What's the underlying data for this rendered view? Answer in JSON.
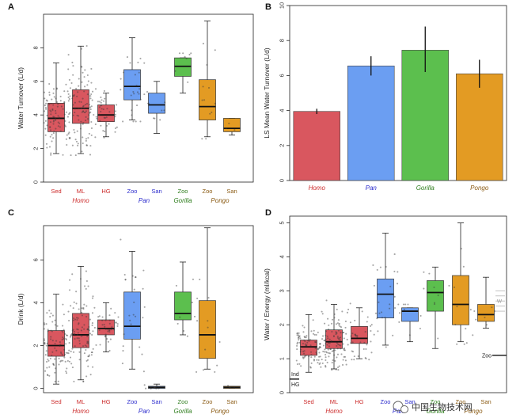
{
  "colors": {
    "Homo": "#d9575f",
    "Pan": "#6b9ef2",
    "Gorilla": "#5cbf4e",
    "Pongo": "#e39b23",
    "Homo_text": "#cc2b2b",
    "Pan_text": "#2b2bcc",
    "Gorilla_text": "#2e7d1d",
    "Pongo_text": "#8a5a12"
  },
  "watermark": {
    "text": "中国生物技术网",
    "icon": "wechat-icon"
  },
  "chart_data": [
    {
      "panel": "A",
      "type": "box",
      "title": "",
      "ylabel": "Water Turnover (L/d)",
      "ylim": [
        0,
        10
      ],
      "yticks": [
        0,
        2,
        4,
        6,
        8
      ],
      "categories": [
        {
          "label": "Sed",
          "genus": "Homo",
          "q1": 3.0,
          "median": 3.8,
          "q3": 4.7,
          "wlo": 1.7,
          "whi": 7.1,
          "n": 90
        },
        {
          "label": "ML",
          "genus": "Homo",
          "q1": 3.5,
          "median": 4.4,
          "q3": 5.5,
          "wlo": 1.7,
          "whi": 8.1,
          "n": 110
        },
        {
          "label": "HG",
          "genus": "Homo",
          "q1": 3.6,
          "median": 4.0,
          "q3": 4.6,
          "wlo": 2.7,
          "whi": 5.3,
          "n": 40
        },
        {
          "label": "Zoo",
          "genus": "Pan",
          "q1": 4.9,
          "median": 5.7,
          "q3": 6.7,
          "wlo": 3.7,
          "whi": 8.6,
          "n": 25
        },
        {
          "label": "San",
          "genus": "Pan",
          "q1": 4.1,
          "median": 4.6,
          "q3": 5.3,
          "wlo": 2.9,
          "whi": 6.0,
          "n": 10
        },
        {
          "label": "Zoo",
          "genus": "Gorilla",
          "q1": 6.3,
          "median": 6.9,
          "q3": 7.4,
          "wlo": 5.3,
          "whi": 7.4,
          "n": 8
        },
        {
          "label": "Zoo",
          "genus": "Pongo",
          "q1": 3.7,
          "median": 4.5,
          "q3": 6.1,
          "wlo": 2.7,
          "whi": 9.6,
          "n": 12
        },
        {
          "label": "San",
          "genus": "Pongo",
          "q1": 3.0,
          "median": 3.2,
          "q3": 3.8,
          "wlo": 2.8,
          "whi": 3.8,
          "n": 3
        }
      ],
      "genus_labels": [
        "Homo",
        "Pan",
        "Gorilla",
        "Pongo"
      ]
    },
    {
      "panel": "B",
      "type": "bar",
      "ylabel": "LS Mean Water Turnover (L/d)",
      "ylim": [
        0,
        10
      ],
      "yticks": [
        0,
        2,
        4,
        6,
        8,
        10
      ],
      "categories": [
        "Homo",
        "Pan",
        "Gorilla",
        "Pongo"
      ],
      "values": [
        3.95,
        6.55,
        7.45,
        6.1
      ],
      "err_low": [
        3.8,
        6.0,
        6.2,
        5.3
      ],
      "err_high": [
        4.1,
        7.1,
        8.8,
        6.9
      ]
    },
    {
      "panel": "C",
      "type": "box",
      "ylabel": "Drink (L/d)",
      "ylim": [
        -0.2,
        7.6
      ],
      "yticks": [
        0,
        2,
        4,
        6
      ],
      "categories": [
        {
          "label": "Sed",
          "genus": "Homo",
          "q1": 1.5,
          "median": 2.0,
          "q3": 2.7,
          "wlo": 0.2,
          "whi": 4.4,
          "n": 90
        },
        {
          "label": "ML",
          "genus": "Homo",
          "q1": 1.9,
          "median": 2.5,
          "q3": 3.5,
          "wlo": 0.4,
          "whi": 5.7,
          "n": 110
        },
        {
          "label": "HG",
          "genus": "Homo",
          "q1": 2.5,
          "median": 2.8,
          "q3": 3.2,
          "wlo": 1.7,
          "whi": 4.0,
          "n": 40
        },
        {
          "label": "Zoo",
          "genus": "Pan",
          "q1": 2.3,
          "median": 2.9,
          "q3": 4.5,
          "wlo": 0.9,
          "whi": 6.4,
          "n": 25
        },
        {
          "label": "San",
          "genus": "Pan",
          "q1": 0.0,
          "median": 0.05,
          "q3": 0.1,
          "wlo": 0.0,
          "whi": 0.2,
          "n": 10
        },
        {
          "label": "Zoo",
          "genus": "Gorilla",
          "q1": 3.2,
          "median": 3.5,
          "q3": 4.5,
          "wlo": 2.5,
          "whi": 5.9,
          "n": 8
        },
        {
          "label": "Zoo",
          "genus": "Pongo",
          "q1": 1.4,
          "median": 2.5,
          "q3": 4.1,
          "wlo": 0.9,
          "whi": 7.5,
          "n": 12
        },
        {
          "label": "San",
          "genus": "Pongo",
          "q1": 0.0,
          "median": 0.05,
          "q3": 0.1,
          "wlo": 0.0,
          "whi": 0.1,
          "n": 3
        }
      ],
      "genus_labels": [
        "Homo",
        "Pan",
        "Gorilla",
        "Pongo"
      ]
    },
    {
      "panel": "D",
      "type": "box",
      "ylabel": "Water / Energy (ml/kcal)",
      "ylim": [
        0,
        5.2
      ],
      "yticks": [
        0,
        1,
        2,
        3,
        4,
        5
      ],
      "categories": [
        {
          "label": "Sed",
          "genus": "Homo",
          "q1": 1.1,
          "median": 1.35,
          "q3": 1.55,
          "wlo": 0.6,
          "whi": 2.3,
          "n": 90
        },
        {
          "label": "ML",
          "genus": "Homo",
          "q1": 1.3,
          "median": 1.5,
          "q3": 1.85,
          "wlo": 0.7,
          "whi": 2.6,
          "n": 110
        },
        {
          "label": "HG",
          "genus": "Homo",
          "q1": 1.45,
          "median": 1.6,
          "q3": 1.95,
          "wlo": 1.0,
          "whi": 2.5,
          "n": 40
        },
        {
          "label": "Zoo",
          "genus": "Pan",
          "q1": 2.2,
          "median": 2.9,
          "q3": 3.35,
          "wlo": 1.4,
          "whi": 4.7,
          "n": 25
        },
        {
          "label": "San",
          "genus": "Pan",
          "q1": 2.1,
          "median": 2.4,
          "q3": 2.5,
          "wlo": 1.5,
          "whi": 2.5,
          "n": 10
        },
        {
          "label": "Zoo",
          "genus": "Gorilla",
          "q1": 2.4,
          "median": 2.95,
          "q3": 3.3,
          "wlo": 1.3,
          "whi": 3.7,
          "n": 8
        },
        {
          "label": "Zoo",
          "genus": "Pongo",
          "q1": 2.0,
          "median": 2.6,
          "q3": 3.45,
          "wlo": 1.5,
          "whi": 5.0,
          "n": 12
        },
        {
          "label": "San",
          "genus": "Pongo",
          "q1": 2.1,
          "median": 2.3,
          "q3": 2.6,
          "wlo": 1.9,
          "whi": 3.4,
          "n": 6
        }
      ],
      "genus_labels": [
        "Homo",
        "Pan",
        "Gorilla",
        "Pongo"
      ],
      "annotations": [
        {
          "text": "Ind",
          "value": 0.4
        },
        {
          "text": "HG",
          "value": 0.4
        },
        {
          "text": "Zoo",
          "value": 1.1
        },
        {
          "text": "W",
          "value": 2.7
        }
      ]
    }
  ]
}
